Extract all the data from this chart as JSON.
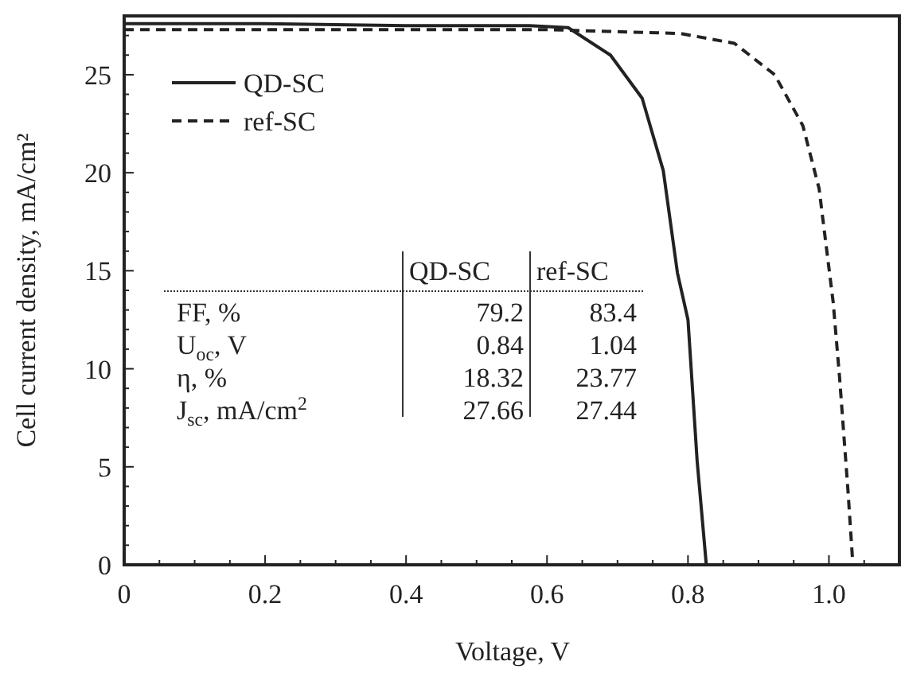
{
  "chart_data": {
    "type": "line",
    "xlabel": "Voltage, V",
    "ylabel": "Cell current density, mA/cm²",
    "xlim": [
      0,
      1.1
    ],
    "ylim": [
      0,
      28
    ],
    "xticks": [
      0,
      {
        "value": 0.05,
        "label": null
      },
      {
        "value": 0.1,
        "label": null
      },
      {
        "value": 0.15,
        "label": null
      },
      0.2,
      {
        "value": 0.25,
        "label": null
      },
      {
        "value": 0.3,
        "label": null
      },
      {
        "value": 0.35,
        "label": null
      },
      0.4,
      {
        "value": 0.45,
        "label": null
      },
      {
        "value": 0.5,
        "label": null
      },
      {
        "value": 0.55,
        "label": null
      },
      0.6,
      {
        "value": 0.65,
        "label": null
      },
      {
        "value": 0.7,
        "label": null
      },
      {
        "value": 0.75,
        "label": null
      },
      0.8,
      {
        "value": 0.85,
        "label": null
      },
      {
        "value": 0.9,
        "label": null
      },
      {
        "value": 0.95,
        "label": null
      },
      {
        "value": 1.0,
        "label": "1.0"
      },
      {
        "value": 1.05,
        "label": null
      }
    ],
    "yticks": [
      0,
      {
        "value": 1,
        "label": null
      },
      {
        "value": 2,
        "label": null
      },
      {
        "value": 3,
        "label": null
      },
      {
        "value": 4,
        "label": null
      },
      5,
      {
        "value": 6,
        "label": null
      },
      {
        "value": 7,
        "label": null
      },
      {
        "value": 8,
        "label": null
      },
      {
        "value": 9,
        "label": null
      },
      10,
      {
        "value": 11,
        "label": null
      },
      {
        "value": 12,
        "label": null
      },
      {
        "value": 13,
        "label": null
      },
      {
        "value": 14,
        "label": null
      },
      15,
      {
        "value": 16,
        "label": null
      },
      {
        "value": 17,
        "label": null
      },
      {
        "value": 18,
        "label": null
      },
      {
        "value": 19,
        "label": null
      },
      20,
      {
        "value": 21,
        "label": null
      },
      {
        "value": 22,
        "label": null
      },
      {
        "value": 23,
        "label": null
      },
      {
        "value": 24,
        "label": null
      },
      25,
      {
        "value": 26,
        "label": null
      },
      {
        "value": 27,
        "label": null
      }
    ],
    "grid": false,
    "legend": "top left",
    "series": [
      {
        "name": "QD-SC",
        "color": "#222222",
        "line_style": "solid",
        "x": [
          0,
          0.2,
          0.4,
          0.575,
          0.63,
          0.69,
          0.735,
          0.765,
          0.785,
          0.8,
          0.813,
          0.826
        ],
        "values": [
          27.6,
          27.6,
          27.5,
          27.5,
          27.4,
          26.0,
          23.8,
          20.1,
          14.9,
          12.5,
          5.3,
          0
        ]
      },
      {
        "name": "ref-SC",
        "color": "#222222",
        "line_style": "dashed",
        "x": [
          0,
          0.3,
          0.6,
          0.79,
          0.866,
          0.923,
          0.963,
          0.986,
          1.006,
          1.015,
          1.027,
          1.034
        ],
        "values": [
          27.3,
          27.3,
          27.3,
          27.1,
          26.6,
          25.0,
          22.4,
          19.2,
          13.4,
          9.6,
          3.8,
          0
        ]
      }
    ],
    "annotations": [
      "QD-SC",
      "ref-SC",
      "FF, %",
      "79.2",
      "83.4",
      "U$_{oc}$, V",
      "0.84",
      "1.04",
      "η, %",
      "18.32",
      "23.77",
      "J$_{sc}$, mA/cm$^{2}$",
      "27.66",
      "27.44"
    ]
  }
}
